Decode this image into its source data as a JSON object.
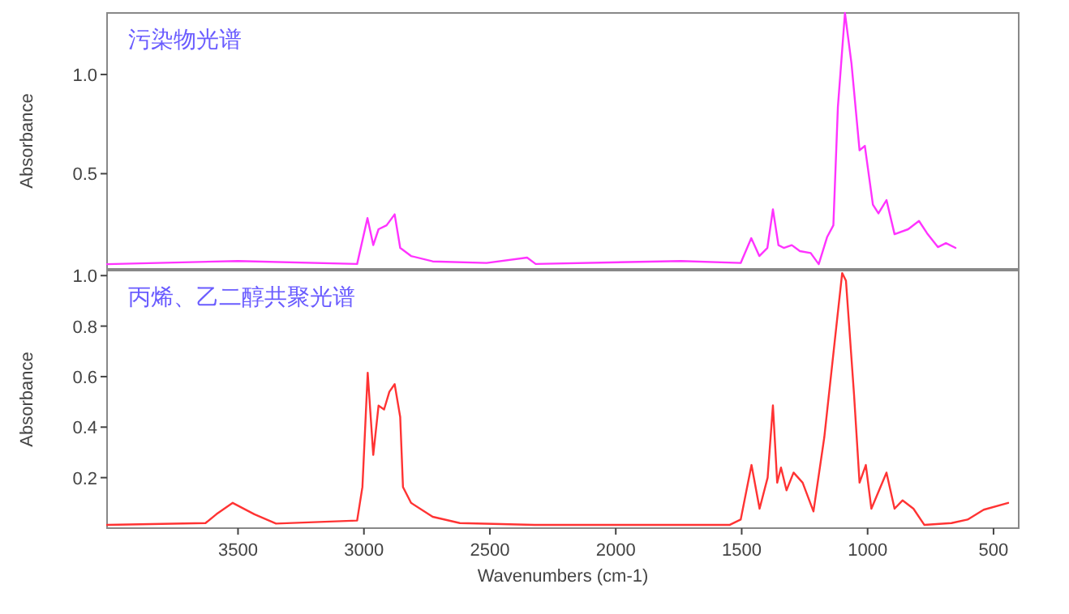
{
  "chart_data": [
    {
      "type": "line",
      "annotations": [
        "污染物光谱"
      ],
      "ylabel": "Absorbance",
      "xlim": [
        4020,
        400
      ],
      "ylim": [
        0.02,
        1.31
      ],
      "yticks": [
        0.5,
        {
          "value": 1,
          "label": "1.0"
        }
      ],
      "tick_labels": "y",
      "grid": false,
      "marker": "none",
      "line_style": "solid",
      "x": [
        4020,
        3500,
        3027,
        2986,
        2963,
        2942,
        2910,
        2878,
        2856,
        2813,
        2727,
        2513,
        2352,
        2318,
        1741,
        1504,
        1462,
        1430,
        1398,
        1376,
        1354,
        1333,
        1301,
        1269,
        1226,
        1194,
        1161,
        1136,
        1118,
        1090,
        1064,
        1032,
        1011,
        979,
        957,
        925,
        893,
        839,
        796,
        764,
        721,
        689,
        651
      ],
      "series": [
        {
          "color": "#ff33ff",
          "values": [
            0.044,
            0.06,
            0.045,
            0.276,
            0.14,
            0.22,
            0.24,
            0.295,
            0.126,
            0.085,
            0.058,
            0.05,
            0.077,
            0.045,
            0.06,
            0.05,
            0.175,
            0.085,
            0.126,
            0.32,
            0.14,
            0.126,
            0.14,
            0.11,
            0.1,
            0.044,
            0.18,
            0.24,
            0.836,
            1.31,
            1.055,
            0.618,
            0.64,
            0.344,
            0.3,
            0.367,
            0.195,
            0.22,
            0.262,
            0.2,
            0.13,
            0.15,
            0.126
          ]
        }
      ]
    },
    {
      "type": "line",
      "annotations": [
        "丙烯、乙二醇共聚光谱"
      ],
      "xlabel": "Wavenumbers (cm-1)",
      "ylabel": "Absorbance",
      "xlim": [
        4020,
        400
      ],
      "ylim": [
        0,
        1.02
      ],
      "xticks": [
        3500,
        3000,
        2500,
        2000,
        1500,
        1000,
        500
      ],
      "yticks": [
        0.2,
        0.4,
        0.6,
        0.8,
        {
          "value": 1,
          "label": "1.0"
        }
      ],
      "grid": false,
      "marker": "none",
      "line_style": "solid",
      "x": [
        4020,
        3629,
        3586,
        3521,
        3435,
        3349,
        3027,
        3006,
        2985,
        2963,
        2942,
        2920,
        2899,
        2878,
        2856,
        2845,
        2813,
        2727,
        2619,
        2322,
        1547,
        1504,
        1461,
        1429,
        1397,
        1376,
        1359,
        1344,
        1322,
        1294,
        1258,
        1215,
        1172,
        1130,
        1101,
        1086,
        1054,
        1032,
        1007,
        985,
        925,
        893,
        861,
        818,
        775,
        667,
        603,
        539,
        442
      ],
      "series": [
        {
          "color": "#ff3333",
          "values": [
            0.013,
            0.02,
            0.055,
            0.1,
            0.055,
            0.018,
            0.03,
            0.163,
            0.615,
            0.29,
            0.485,
            0.47,
            0.54,
            0.57,
            0.44,
            0.163,
            0.1,
            0.045,
            0.02,
            0.013,
            0.013,
            0.034,
            0.25,
            0.077,
            0.2,
            0.486,
            0.18,
            0.24,
            0.15,
            0.22,
            0.18,
            0.066,
            0.36,
            0.745,
            1.01,
            0.98,
            0.53,
            0.18,
            0.25,
            0.077,
            0.22,
            0.077,
            0.11,
            0.077,
            0.013,
            0.02,
            0.034,
            0.073,
            0.1
          ]
        }
      ]
    }
  ]
}
